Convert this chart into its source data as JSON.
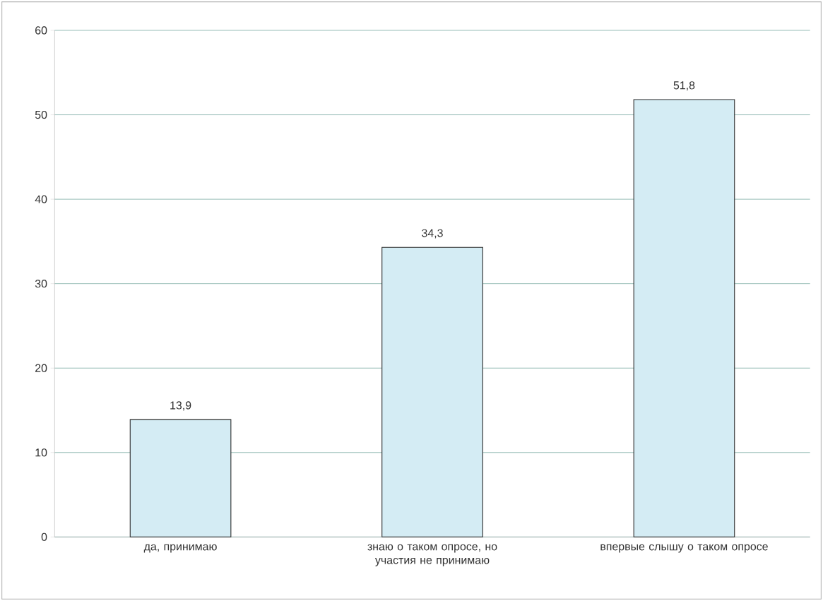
{
  "chart_data": {
    "type": "bar",
    "categories": [
      "да, принимаю",
      "знаю о таком опросе, но участия не принимаю",
      "впервые слышу о таком опросе"
    ],
    "values": [
      13.9,
      34.3,
      51.8
    ],
    "value_labels": [
      "13,9",
      "34,3",
      "51,8"
    ],
    "color": "#d4ecf4",
    "ylim": [
      0,
      60
    ],
    "yticks": [
      0,
      10,
      20,
      30,
      40,
      50,
      60
    ],
    "grid": "y"
  }
}
